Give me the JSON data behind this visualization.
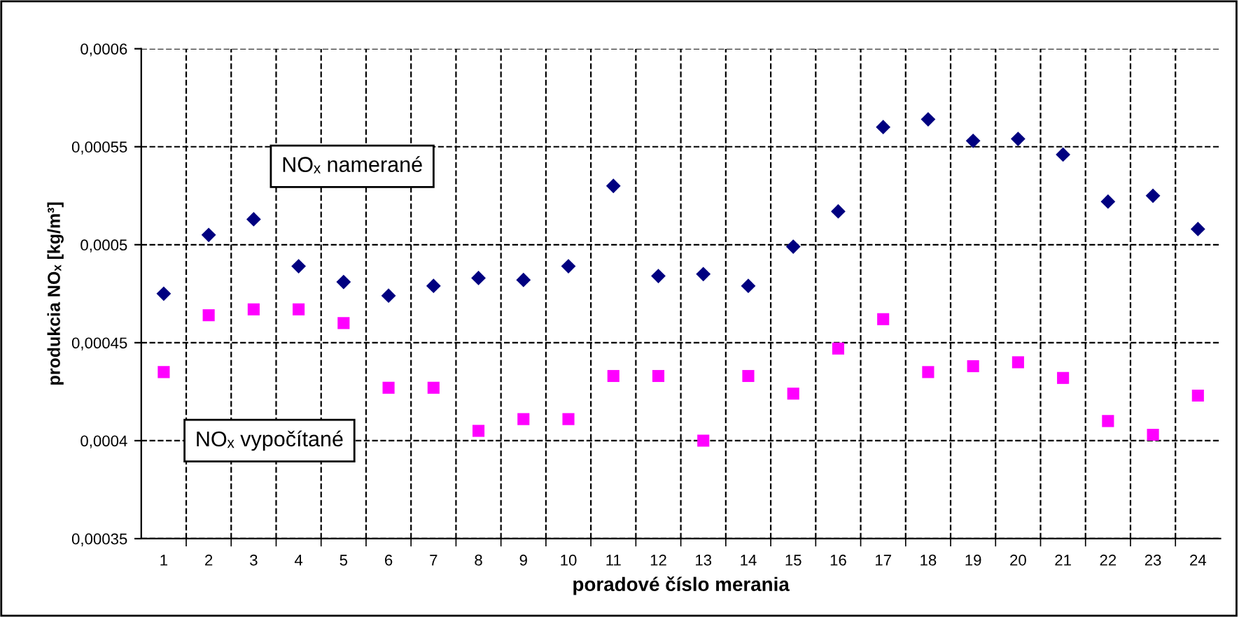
{
  "chart_data": {
    "type": "scatter",
    "xlabel": "poradové číslo merania",
    "ylabel": "produkcia NOₓ [kg/m³]",
    "categories": [
      "1",
      "2",
      "3",
      "4",
      "5",
      "6",
      "7",
      "8",
      "9",
      "10",
      "11",
      "12",
      "13",
      "14",
      "15",
      "16",
      "17",
      "18",
      "19",
      "20",
      "21",
      "22",
      "23",
      "24"
    ],
    "ylim": [
      0.00035,
      0.0006
    ],
    "yticks": [
      {
        "value": 0.00035,
        "label": "0,00035"
      },
      {
        "value": 0.0004,
        "label": "0,0004"
      },
      {
        "value": 0.00045,
        "label": "0,00045"
      },
      {
        "value": 0.0005,
        "label": "0,0005"
      },
      {
        "value": 0.00055,
        "label": "0,00055"
      },
      {
        "value": 0.0006,
        "label": "0,0006"
      }
    ],
    "grid": true,
    "line_style": "dashed",
    "series": [
      {
        "name": "NOₓ namerané",
        "color": "#000080",
        "marker": "diamond",
        "values": [
          0.000475,
          0.000505,
          0.000513,
          0.000489,
          0.000481,
          0.000474,
          0.000479,
          0.000483,
          0.000482,
          0.000489,
          0.00053,
          0.000484,
          0.000485,
          0.000479,
          0.000499,
          0.000517,
          0.00056,
          0.000564,
          0.000553,
          0.000554,
          0.000546,
          0.000522,
          0.000525,
          0.000508
        ]
      },
      {
        "name": "NOₓ vypočítané",
        "color": "#ff00ff",
        "marker": "square",
        "values": [
          0.000435,
          0.000464,
          0.000467,
          0.000467,
          0.00046,
          0.000427,
          0.000427,
          0.000405,
          0.000411,
          0.000411,
          0.000433,
          0.000433,
          0.0004,
          0.000433,
          0.000424,
          0.000447,
          0.000462,
          0.000435,
          0.000438,
          0.00044,
          0.000432,
          0.00041,
          0.000403,
          0.000423
        ]
      }
    ]
  }
}
